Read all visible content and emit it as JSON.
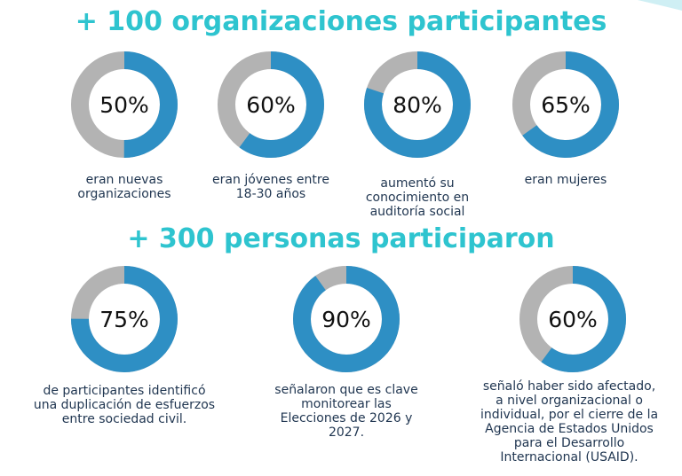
{
  "colors": {
    "heading": "#2ec4cf",
    "ring_filled": "#2e8fc4",
    "ring_remainder": "#b3b3b3",
    "caption": "#1f3550"
  },
  "header": {
    "organizations_title": "+ 100 organizaciones participantes",
    "people_title": "+ 300 personas participaron"
  },
  "chart_data": [
    {
      "type": "pie",
      "title": "+ 100 organizaciones participantes",
      "categories": [
        "eran nuevas organizaciones",
        "eran jóvenes entre 18-30 años",
        "aumentó su conocimiento en auditoría social",
        "eran mujeres"
      ],
      "values": [
        50,
        60,
        80,
        65
      ],
      "data_labels": [
        "50%",
        "60%",
        "80%",
        "65%"
      ],
      "unit": "%"
    },
    {
      "type": "pie",
      "title": "+ 300 personas participaron",
      "categories": [
        "de participantes identificó una duplicación de esfuerzos entre sociedad civil.",
        "señalaron que es clave monitorear las Elecciones de 2026 y 2027.",
        "señaló haber sido afectado, a nivel organizacional o individual, por el cierre de la Agencia de Estados Unidos para el Desarrollo Internacional (USAID)."
      ],
      "values": [
        75,
        90,
        60
      ],
      "data_labels": [
        "75%",
        "90%",
        "60%"
      ],
      "unit": "%"
    }
  ],
  "captions": {
    "org": [
      [
        "eran nuevas",
        "organizaciones"
      ],
      [
        "eran jóvenes entre",
        "18-30 años"
      ],
      [
        "aumentó su",
        "conocimiento en",
        "auditoría social"
      ],
      [
        "eran mujeres"
      ]
    ],
    "people": [
      [
        "de participantes identificó",
        "una duplicación de esfuerzos",
        "entre sociedad civil."
      ],
      [
        "señalaron que es clave",
        "monitorear las",
        "Elecciones de 2026 y",
        "2027."
      ],
      [
        "señaló haber sido afectado,",
        "a nivel organizacional o",
        "individual, por el cierre de la",
        "Agencia de Estados Unidos",
        "para el Desarrollo",
        "Internacional (USAID)."
      ]
    ]
  }
}
